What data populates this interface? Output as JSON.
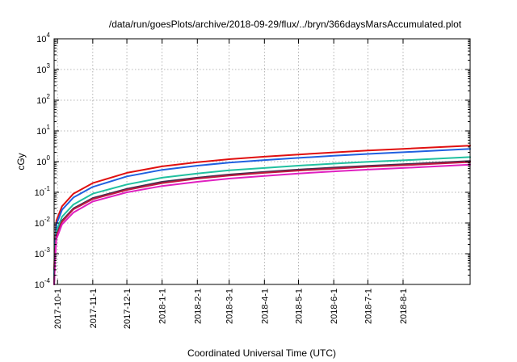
{
  "chart_data": {
    "type": "line",
    "title": "/data/run/goesPlots/archive/2018-09-29/flux/../bryn/366daysMarsAccumulated.plot",
    "xlabel": "Coordinated Universal Time (UTC)",
    "ylabel": "cGy",
    "yscale": "log",
    "ylim": [
      0.0001,
      10000
    ],
    "xlim": [
      "2017-09-28",
      "2018-09-29"
    ],
    "x_ticks": [
      "2017-10-1",
      "2017-11-1",
      "2017-12-1",
      "2018-1-1",
      "2018-2-1",
      "2018-3-1",
      "2018-4-1",
      "2018-5-1",
      "2018-6-1",
      "2018-7-1",
      "2018-8-1"
    ],
    "y_ticks": [
      {
        "value": 0.0001,
        "base": "10",
        "exp": "-4"
      },
      {
        "value": 0.001,
        "base": "10",
        "exp": "-3"
      },
      {
        "value": 0.01,
        "base": "10",
        "exp": "-2"
      },
      {
        "value": 0.1,
        "base": "10",
        "exp": "-1"
      },
      {
        "value": 1,
        "base": "10",
        "exp": "0"
      },
      {
        "value": 10,
        "base": "10",
        "exp": "1"
      },
      {
        "value": 100,
        "base": "10",
        "exp": "2"
      },
      {
        "value": 1000,
        "base": "10",
        "exp": "3"
      },
      {
        "value": 10000,
        "base": "10",
        "exp": "4"
      }
    ],
    "grid": true,
    "legend": "none",
    "x": [
      "2017-09-28",
      "2017-09-29",
      "2017-09-30",
      "2017-10-05",
      "2017-10-15",
      "2017-11-01",
      "2017-12-01",
      "2018-01-01",
      "2018-02-01",
      "2018-03-01",
      "2018-04-01",
      "2018-05-01",
      "2018-06-01",
      "2018-07-01",
      "2018-08-01",
      "2018-09-29"
    ],
    "series": [
      {
        "color": "#e01010",
        "values": [
          0.0003,
          0.003,
          0.012,
          0.035,
          0.09,
          0.2,
          0.43,
          0.7,
          0.95,
          1.2,
          1.45,
          1.7,
          2.0,
          2.3,
          2.6,
          3.3
        ]
      },
      {
        "color": "#2060e0",
        "values": [
          0.0002,
          0.0022,
          0.009,
          0.027,
          0.068,
          0.15,
          0.33,
          0.54,
          0.74,
          0.93,
          1.12,
          1.32,
          1.55,
          1.78,
          2.02,
          2.6
        ]
      },
      {
        "color": "#20c0a0",
        "values": [
          0.00015,
          0.0015,
          0.0055,
          0.016,
          0.04,
          0.09,
          0.18,
          0.3,
          0.41,
          0.52,
          0.62,
          0.74,
          0.86,
          0.98,
          1.1,
          1.4
        ]
      },
      {
        "color": "#403050",
        "values": [
          0.0001,
          0.0011,
          0.004,
          0.012,
          0.03,
          0.065,
          0.13,
          0.22,
          0.3,
          0.38,
          0.46,
          0.55,
          0.64,
          0.73,
          0.82,
          1.05
        ]
      },
      {
        "color": "#c01840",
        "values": [
          0.0001,
          0.001,
          0.0037,
          0.011,
          0.028,
          0.06,
          0.12,
          0.2,
          0.28,
          0.35,
          0.43,
          0.51,
          0.59,
          0.68,
          0.76,
          0.97
        ]
      },
      {
        "color": "#e020c0",
        "values": [
          0.0001,
          0.0008,
          0.003,
          0.009,
          0.022,
          0.05,
          0.1,
          0.16,
          0.22,
          0.28,
          0.34,
          0.41,
          0.48,
          0.55,
          0.62,
          0.8
        ]
      }
    ]
  }
}
